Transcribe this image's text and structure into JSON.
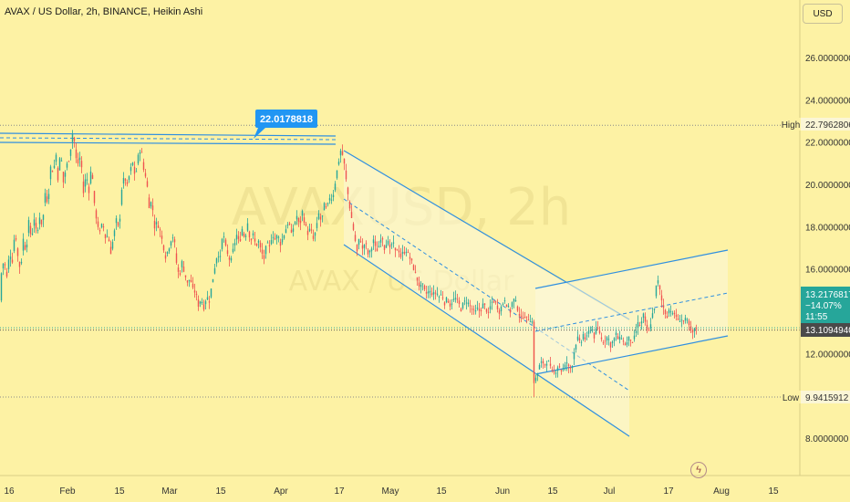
{
  "header": {
    "title": "AVAX / US Dollar, 2h, BINANCE, Heikin Ashi",
    "currency": "USD"
  },
  "watermark": {
    "symbol": "AVAXUSD, 2h",
    "subtitle": "AVAX / US Dollar"
  },
  "colors": {
    "background": "#fdf2a4",
    "up": "#26a69a",
    "down": "#ef5350",
    "channel": "#2f8fe0",
    "callout": "#2196f3",
    "price_label": "#4a4a4a",
    "live_label": "#26a69a"
  },
  "chart_data": {
    "type": "candlestick",
    "title": "AVAX / US Dollar, 2h, BINANCE, Heikin Ashi",
    "x_tick_labels": [
      "16",
      "Feb",
      "15",
      "Mar",
      "15",
      "Apr",
      "17",
      "May",
      "15",
      "Jun",
      "15",
      "Jul",
      "17",
      "Aug",
      "15"
    ],
    "y_tick_labels": [
      "26.0000000",
      "24.0000000",
      "22.0000000",
      "20.0000000",
      "18.0000000",
      "16.0000000",
      "12.0000000",
      "8.0000000"
    ],
    "ylim": [
      7.0,
      27.0
    ],
    "price_path": [
      [
        1,
        15.8
      ],
      [
        4,
        16.5
      ],
      [
        7,
        15.6
      ],
      [
        10,
        16.8
      ],
      [
        13,
        16.4
      ],
      [
        16,
        17.9
      ],
      [
        19,
        16.6
      ],
      [
        22,
        15.9
      ],
      [
        25,
        17.4
      ],
      [
        28,
        16.8
      ],
      [
        31,
        18.2
      ],
      [
        34,
        17.4
      ],
      [
        37,
        18.4
      ],
      [
        40,
        17.5
      ],
      [
        43,
        18.5
      ],
      [
        46,
        18.0
      ],
      [
        49,
        19.6
      ],
      [
        52,
        19.1
      ],
      [
        55,
        20.8
      ],
      [
        58,
        20.6
      ],
      [
        61,
        21.4
      ],
      [
        63,
        20.3
      ],
      [
        66,
        21.6
      ],
      [
        69,
        20.1
      ],
      [
        72,
        20.8
      ],
      [
        75,
        21.2
      ],
      [
        78,
        22.0
      ],
      [
        80,
        22.8
      ],
      [
        82,
        21.3
      ],
      [
        85,
        21.0
      ],
      [
        88,
        21.4
      ],
      [
        91,
        19.6
      ],
      [
        94,
        20.5
      ],
      [
        97,
        19.7
      ],
      [
        100,
        21.0
      ],
      [
        103,
        19.0
      ],
      [
        106,
        18.2
      ],
      [
        109,
        17.7
      ],
      [
        112,
        18.2
      ],
      [
        115,
        17.5
      ],
      [
        118,
        17.6
      ],
      [
        121,
        16.8
      ],
      [
        124,
        17.5
      ],
      [
        127,
        18.3
      ],
      [
        130,
        17.8
      ],
      [
        133,
        19.8
      ],
      [
        136,
        20.4
      ],
      [
        139,
        19.9
      ],
      [
        142,
        20.6
      ],
      [
        145,
        21.0
      ],
      [
        148,
        20.3
      ],
      [
        151,
        21.3
      ],
      [
        154,
        21.8
      ],
      [
        157,
        20.7
      ],
      [
        160,
        20.3
      ],
      [
        163,
        19.0
      ],
      [
        166,
        19.2
      ],
      [
        169,
        18.0
      ],
      [
        172,
        18.2
      ],
      [
        175,
        17.8
      ],
      [
        178,
        17.2
      ],
      [
        181,
        16.6
      ],
      [
        184,
        16.9
      ],
      [
        187,
        17.4
      ],
      [
        190,
        17.6
      ],
      [
        193,
        16.3
      ],
      [
        196,
        15.6
      ],
      [
        199,
        16.3
      ],
      [
        202,
        15.8
      ],
      [
        205,
        15.3
      ],
      [
        208,
        15.6
      ],
      [
        211,
        15.0
      ],
      [
        214,
        14.9
      ],
      [
        217,
        14.3
      ],
      [
        220,
        14.6
      ],
      [
        223,
        14.2
      ],
      [
        226,
        14.7
      ],
      [
        229,
        14.5
      ],
      [
        232,
        15.3
      ],
      [
        235,
        16.1
      ],
      [
        238,
        16.8
      ],
      [
        241,
        16.5
      ],
      [
        244,
        17.8
      ],
      [
        247,
        17.0
      ],
      [
        250,
        16.5
      ],
      [
        253,
        16.4
      ],
      [
        256,
        17.1
      ],
      [
        259,
        17.6
      ],
      [
        262,
        17.2
      ],
      [
        265,
        17.9
      ],
      [
        268,
        17.4
      ],
      [
        271,
        18.2
      ],
      [
        274,
        17.3
      ],
      [
        277,
        17.6
      ],
      [
        280,
        17.1
      ],
      [
        283,
        17.3
      ],
      [
        286,
        16.8
      ],
      [
        289,
        16.5
      ],
      [
        292,
        17.2
      ],
      [
        295,
        17.0
      ],
      [
        298,
        17.7
      ],
      [
        301,
        17.4
      ],
      [
        304,
        17.6
      ],
      [
        307,
        17.2
      ],
      [
        310,
        17.5
      ],
      [
        313,
        17.9
      ],
      [
        316,
        18.3
      ],
      [
        319,
        17.6
      ],
      [
        322,
        18.1
      ],
      [
        325,
        18.5
      ],
      [
        328,
        18.0
      ],
      [
        331,
        18.7
      ],
      [
        334,
        18.1
      ],
      [
        337,
        17.7
      ],
      [
        340,
        17.9
      ],
      [
        343,
        17.4
      ],
      [
        346,
        17.8
      ],
      [
        349,
        18.6
      ],
      [
        352,
        18.2
      ],
      [
        355,
        19.0
      ],
      [
        358,
        18.8
      ],
      [
        361,
        19.4
      ],
      [
        364,
        19.3
      ],
      [
        367,
        20.1
      ],
      [
        370,
        20.9
      ],
      [
        373,
        21.6
      ],
      [
        376,
        21.3
      ],
      [
        379,
        20.2
      ],
      [
        382,
        19.2
      ],
      [
        385,
        18.4
      ],
      [
        388,
        17.6
      ],
      [
        391,
        16.8
      ],
      [
        394,
        17.6
      ],
      [
        397,
        16.9
      ],
      [
        400,
        17.3
      ],
      [
        403,
        16.7
      ],
      [
        406,
        16.8
      ],
      [
        409,
        17.4
      ],
      [
        412,
        16.8
      ],
      [
        415,
        17.1
      ],
      [
        418,
        17.7
      ],
      [
        421,
        17.0
      ],
      [
        424,
        17.4
      ],
      [
        427,
        16.9
      ],
      [
        430,
        17.3
      ],
      [
        433,
        16.8
      ],
      [
        436,
        17.0
      ],
      [
        439,
        16.6
      ],
      [
        442,
        16.8
      ],
      [
        445,
        16.9
      ],
      [
        448,
        16.6
      ],
      [
        451,
        16.3
      ],
      [
        454,
        15.9
      ],
      [
        457,
        15.5
      ],
      [
        460,
        15.1
      ],
      [
        463,
        15.2
      ],
      [
        466,
        14.8
      ],
      [
        469,
        14.9
      ],
      [
        472,
        14.9
      ],
      [
        475,
        14.8
      ],
      [
        478,
        14.9
      ],
      [
        481,
        14.7
      ],
      [
        484,
        14.8
      ],
      [
        487,
        14.4
      ],
      [
        490,
        14.6
      ],
      [
        493,
        14.3
      ],
      [
        496,
        14.5
      ],
      [
        499,
        14.6
      ],
      [
        502,
        14.4
      ],
      [
        505,
        14.1
      ],
      [
        508,
        14.4
      ],
      [
        511,
        14.5
      ],
      [
        514,
        14.3
      ],
      [
        517,
        14.1
      ],
      [
        520,
        13.9
      ],
      [
        523,
        14.1
      ],
      [
        526,
        14.0
      ],
      [
        529,
        14.3
      ],
      [
        532,
        14.2
      ],
      [
        535,
        13.8
      ],
      [
        538,
        14.4
      ],
      [
        541,
        14.5
      ],
      [
        544,
        14.3
      ],
      [
        547,
        14.0
      ],
      [
        550,
        14.3
      ],
      [
        553,
        14.6
      ],
      [
        556,
        14.2
      ],
      [
        559,
        14.0
      ],
      [
        562,
        14.6
      ],
      [
        565,
        14.4
      ],
      [
        568,
        14.0
      ],
      [
        571,
        13.6
      ],
      [
        574,
        13.9
      ],
      [
        577,
        13.6
      ],
      [
        580,
        13.7
      ],
      [
        583,
        13.5
      ],
      [
        585,
        10.6
      ],
      [
        588,
        10.9
      ],
      [
        591,
        11.4
      ],
      [
        594,
        11.6
      ],
      [
        597,
        11.5
      ],
      [
        600,
        11.7
      ],
      [
        603,
        11.3
      ],
      [
        606,
        11.0
      ],
      [
        609,
        11.2
      ],
      [
        612,
        11.5
      ],
      [
        615,
        11.2
      ],
      [
        618,
        11.3
      ],
      [
        621,
        11.6
      ],
      [
        624,
        11.2
      ],
      [
        627,
        11.5
      ],
      [
        630,
        12.4
      ],
      [
        633,
        12.7
      ],
      [
        636,
        12.4
      ],
      [
        639,
        12.9
      ],
      [
        642,
        12.6
      ],
      [
        645,
        13.0
      ],
      [
        648,
        13.3
      ],
      [
        651,
        12.8
      ],
      [
        654,
        13.2
      ],
      [
        657,
        13.0
      ],
      [
        660,
        12.5
      ],
      [
        663,
        12.7
      ],
      [
        666,
        12.8
      ],
      [
        669,
        12.4
      ],
      [
        672,
        12.6
      ],
      [
        675,
        12.9
      ],
      [
        678,
        12.6
      ],
      [
        681,
        12.8
      ],
      [
        684,
        12.4
      ],
      [
        687,
        12.5
      ],
      [
        690,
        12.8
      ],
      [
        693,
        12.4
      ],
      [
        696,
        12.9
      ],
      [
        699,
        13.4
      ],
      [
        702,
        13.3
      ],
      [
        705,
        13.8
      ],
      [
        708,
        13.2
      ],
      [
        711,
        13.0
      ],
      [
        714,
        13.7
      ],
      [
        717,
        14.2
      ],
      [
        720,
        15.6
      ],
      [
        722,
        15.2
      ],
      [
        725,
        14.5
      ],
      [
        728,
        14.0
      ],
      [
        731,
        13.8
      ],
      [
        734,
        14.2
      ],
      [
        737,
        13.8
      ],
      [
        740,
        13.9
      ],
      [
        743,
        13.5
      ],
      [
        746,
        13.7
      ],
      [
        749,
        13.5
      ],
      [
        752,
        13.6
      ],
      [
        755,
        13.3
      ],
      [
        758,
        12.9
      ],
      [
        761,
        13.1
      ],
      [
        763,
        13.2
      ]
    ],
    "horizontal_levels": [
      {
        "name": "High",
        "value": "22.7962806",
        "price": 22.7962806
      },
      {
        "name": "Low",
        "value": "9.9415912",
        "price": 9.9415912
      }
    ],
    "current_price": {
      "value": "13.2176817",
      "change": "−14.07%",
      "countdown": "11:55",
      "price": 13.2176817
    },
    "marked_price": {
      "value": "13.1094940",
      "price": 13.109494
    },
    "callout": {
      "value": "22.0178818",
      "price": 22.0178818
    },
    "grid": false
  }
}
